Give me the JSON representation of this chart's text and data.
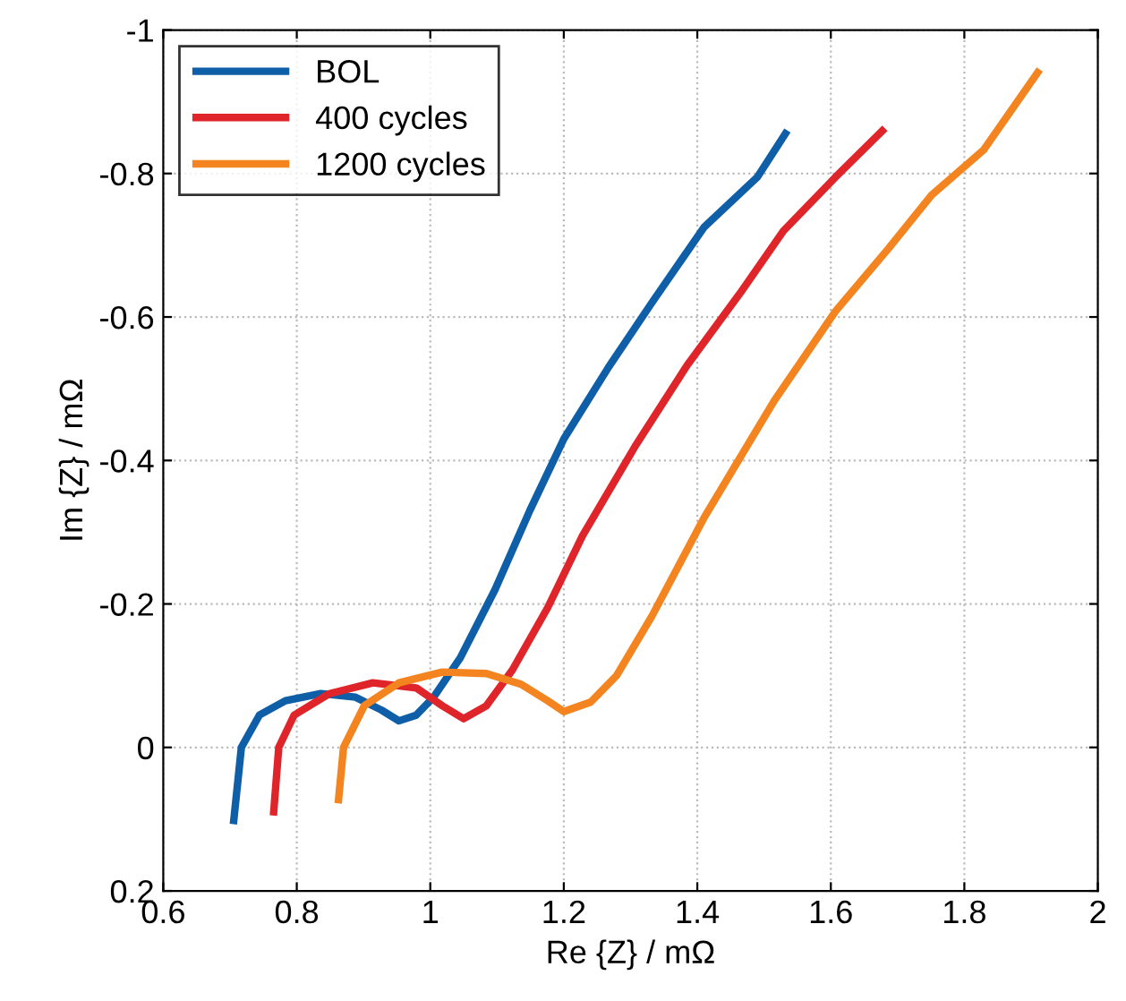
{
  "chart_data": {
    "type": "line",
    "xlabel": "Re {Z} / mΩ",
    "ylabel": "Im {Z} / mΩ",
    "xlim": [
      0.6,
      2
    ],
    "xticks": [
      0.6,
      0.8,
      1,
      1.2,
      1.4,
      1.6,
      1.8,
      2
    ],
    "ylim": [
      0.2,
      -1
    ],
    "yticks": [
      0.2,
      0,
      -0.2,
      -0.4,
      -0.6,
      -0.8,
      -1
    ],
    "grid": true,
    "legend": "top left",
    "line_style": "solid",
    "marker": "none",
    "series": [
      {
        "name": "BOL",
        "color": "#0f5ea8",
        "x": [
          0.705,
          0.717,
          0.744,
          0.783,
          0.836,
          0.888,
          0.927,
          0.953,
          0.979,
          1.005,
          1.045,
          1.097,
          1.149,
          1.2,
          1.267,
          1.332,
          1.41,
          1.49,
          1.535
        ],
        "values": [
          0.107,
          0,
          -0.045,
          -0.065,
          -0.075,
          -0.07,
          -0.052,
          -0.037,
          -0.045,
          -0.07,
          -0.125,
          -0.22,
          -0.33,
          -0.43,
          -0.53,
          -0.62,
          -0.725,
          -0.795,
          -0.86
        ]
      },
      {
        "name": "400 cycles",
        "color": "#e0252a",
        "x": [
          0.765,
          0.773,
          0.796,
          0.849,
          0.914,
          0.979,
          1.018,
          1.05,
          1.084,
          1.123,
          1.176,
          1.228,
          1.307,
          1.385,
          1.464,
          1.529,
          1.607,
          1.681
        ],
        "values": [
          0.095,
          0,
          -0.045,
          -0.075,
          -0.09,
          -0.083,
          -0.058,
          -0.04,
          -0.058,
          -0.108,
          -0.195,
          -0.295,
          -0.42,
          -0.533,
          -0.633,
          -0.72,
          -0.795,
          -0.863
        ]
      },
      {
        "name": "1200 cycles",
        "color": "#f3841f",
        "x": [
          0.862,
          0.87,
          0.901,
          0.953,
          1.018,
          1.084,
          1.136,
          1.176,
          1.2,
          1.24,
          1.279,
          1.332,
          1.41,
          1.515,
          1.607,
          1.686,
          1.751,
          1.829,
          1.913
        ],
        "values": [
          0.078,
          0,
          -0.058,
          -0.09,
          -0.105,
          -0.103,
          -0.088,
          -0.065,
          -0.05,
          -0.063,
          -0.1,
          -0.183,
          -0.32,
          -0.483,
          -0.608,
          -0.695,
          -0.77,
          -0.833,
          -0.945
        ]
      }
    ]
  }
}
